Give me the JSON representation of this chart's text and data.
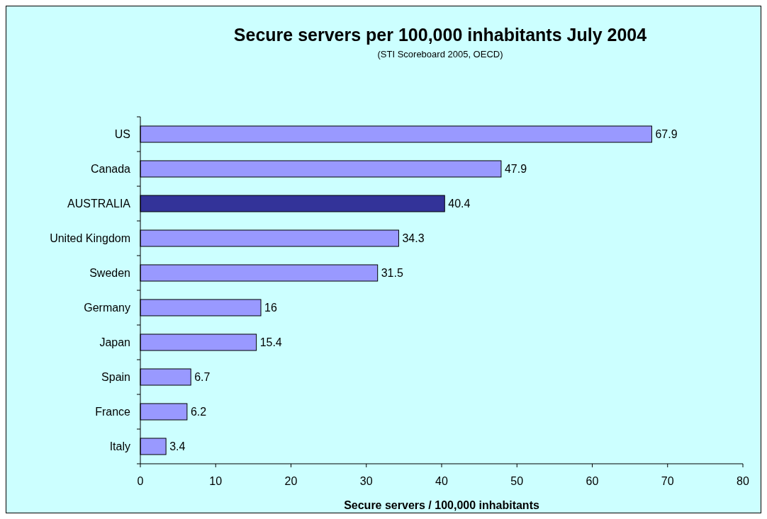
{
  "chart_data": {
    "type": "bar",
    "orientation": "horizontal",
    "title": "Secure servers per 100,000 inhabitants July 2004",
    "subtitle": "(STI Scoreboard 2005, OECD)",
    "xlabel": "Secure servers / 100,000 inhabitants",
    "categories": [
      "US",
      "Canada",
      "AUSTRALIA",
      "United Kingdom",
      "Sweden",
      "Germany",
      "Japan",
      "Spain",
      "France",
      "Italy"
    ],
    "values": [
      67.9,
      47.9,
      40.4,
      34.3,
      31.5,
      16,
      15.4,
      6.7,
      6.2,
      3.4
    ],
    "colors": [
      "#9999ff",
      "#9999ff",
      "#333399",
      "#9999ff",
      "#9999ff",
      "#9999ff",
      "#9999ff",
      "#9999ff",
      "#9999ff",
      "#9999ff"
    ],
    "xlim": [
      0,
      80
    ],
    "xticks": [
      0,
      10,
      20,
      30,
      40,
      50,
      60,
      70,
      80
    ],
    "data_labels": true,
    "grid": false
  }
}
